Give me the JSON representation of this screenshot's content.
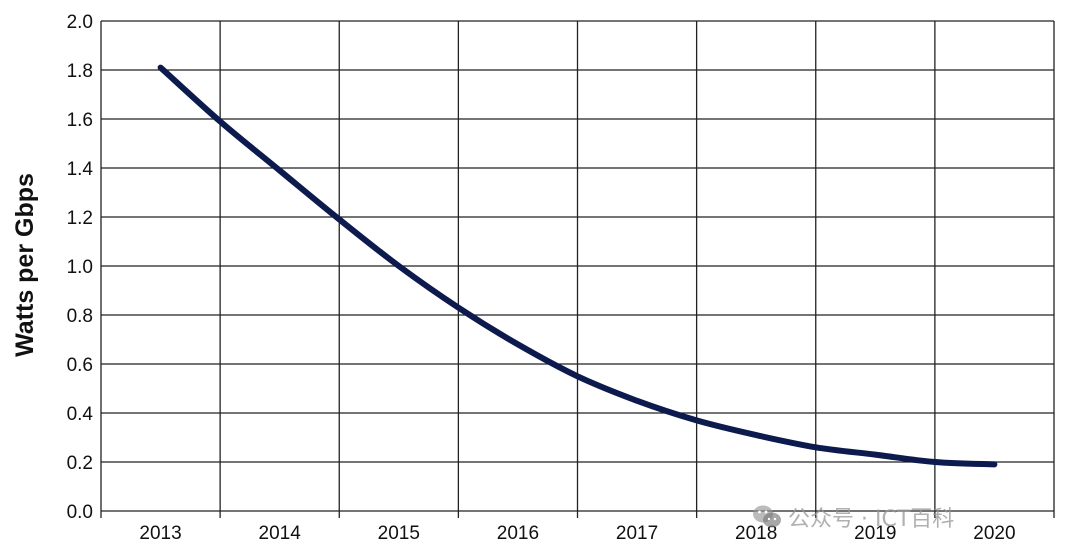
{
  "chart_data": {
    "type": "line",
    "title": "",
    "xlabel": "",
    "ylabel": "Watts per Gbps",
    "categories": [
      "2013",
      "2014",
      "2015",
      "2016",
      "2017",
      "2018",
      "2019",
      "2020"
    ],
    "x": [
      2013,
      2013.5,
      2014,
      2014.5,
      2015,
      2015.5,
      2016,
      2016.5,
      2017,
      2017.5,
      2018,
      2018.5,
      2019,
      2019.5,
      2020
    ],
    "series": [
      {
        "values": [
          1.81,
          1.59,
          1.39,
          1.19,
          1.0,
          0.83,
          0.68,
          0.55,
          0.45,
          0.37,
          0.31,
          0.26,
          0.23,
          0.2,
          0.19
        ],
        "color": "#0d1a4d"
      }
    ],
    "ylim": [
      0,
      2
    ],
    "yticks": [
      "0.0",
      "0.2",
      "0.4",
      "0.6",
      "0.8",
      "1.0",
      "1.2",
      "1.4",
      "1.6",
      "1.8",
      "2.0"
    ],
    "grid": true,
    "legend": "none"
  },
  "watermark": {
    "text": "公众号 · ICT百科",
    "icon": "wechat-icon"
  }
}
